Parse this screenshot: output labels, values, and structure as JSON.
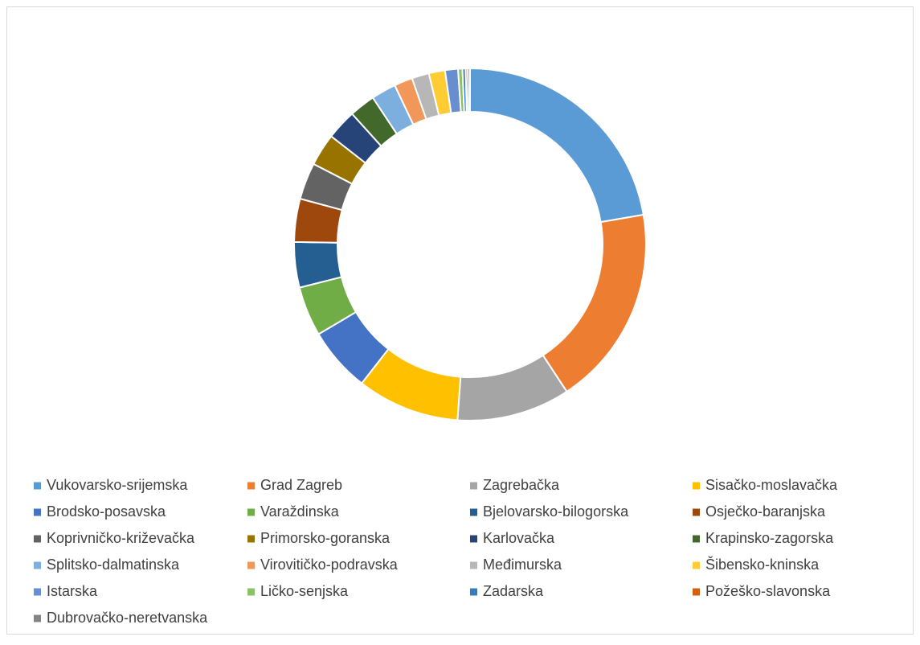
{
  "chart_data": {
    "type": "donut",
    "categories": [
      "Vukovarsko-srijemska",
      "Grad Zagreb",
      "Zagrebačka",
      "Sisačko-moslavačka",
      "Brodsko-posavska",
      "Varaždinska",
      "Bjelovarsko-bilogorska",
      "Osječko-baranjska",
      "Koprivničko-križevačka",
      "Primorsko-goranska",
      "Karlovačka",
      "Krapinsko-zagorska",
      "Splitsko-dalmatinska",
      "Virovitičko-podravska",
      "Međimurska",
      "Šibensko-kninska",
      "Istarska",
      "Ličko-senjska",
      "Zadarska",
      "Požeško-slavonska",
      "Dubrovačko-neretvanska"
    ],
    "values": [
      22.5,
      18.6,
      10.5,
      9.5,
      6.0,
      4.6,
      4.2,
      4.0,
      3.4,
      3.0,
      2.8,
      2.4,
      2.3,
      1.7,
      1.6,
      1.5,
      1.2,
      0.4,
      0.3,
      0.2,
      0.2
    ],
    "colors": [
      "#5b9bd5",
      "#ed7d31",
      "#a5a5a5",
      "#ffc000",
      "#4472c4",
      "#70ad47",
      "#255e91",
      "#9e480e",
      "#636363",
      "#997300",
      "#264478",
      "#43682b",
      "#7cafdd",
      "#f1975a",
      "#b7b7b7",
      "#ffcd33",
      "#698ed0",
      "#8cc168",
      "#327dc2",
      "#d26012",
      "#848484"
    ],
    "legend": "bottom"
  }
}
